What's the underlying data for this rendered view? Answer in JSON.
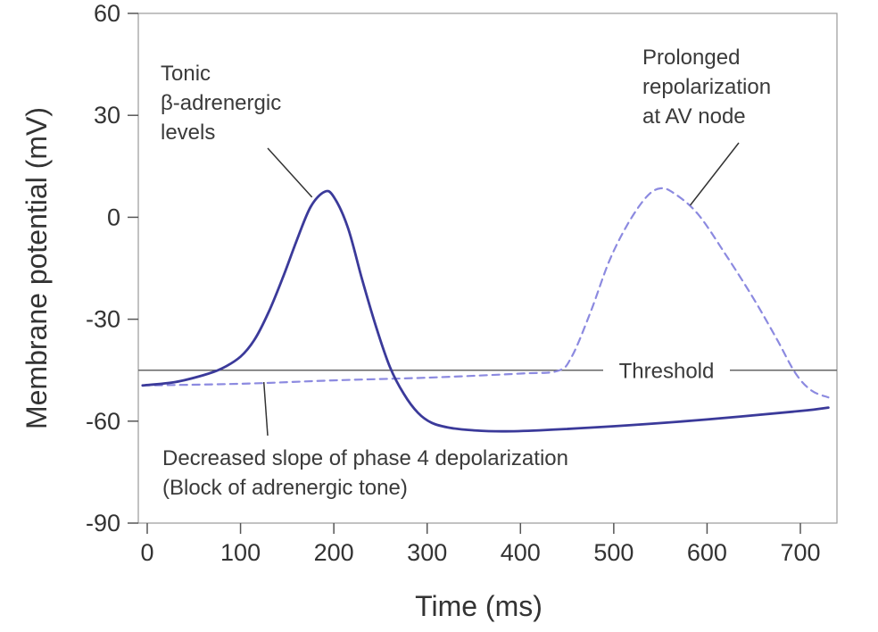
{
  "chart_data": {
    "type": "line",
    "xlabel": "Time (ms)",
    "ylabel": "Membrane potential (mV)",
    "xlim": [
      -10,
      740
    ],
    "ylim": [
      -90,
      60
    ],
    "x_ticks": [
      0,
      100,
      200,
      300,
      400,
      500,
      600,
      700
    ],
    "y_ticks": [
      60,
      30,
      0,
      -30,
      -60,
      -90
    ],
    "grid": false,
    "threshold": {
      "y": -45,
      "label": "Threshold"
    },
    "series": [
      {
        "style": "solid",
        "color": "#3b3a9a",
        "points": [
          [
            -5,
            -49.5
          ],
          [
            30,
            -48.5
          ],
          [
            60,
            -46.5
          ],
          [
            80,
            -44.5
          ],
          [
            100,
            -41
          ],
          [
            115,
            -36
          ],
          [
            130,
            -28
          ],
          [
            145,
            -18
          ],
          [
            160,
            -7
          ],
          [
            175,
            3
          ],
          [
            190,
            7.5
          ],
          [
            200,
            6
          ],
          [
            215,
            -3
          ],
          [
            230,
            -18
          ],
          [
            245,
            -32
          ],
          [
            260,
            -44
          ],
          [
            275,
            -52
          ],
          [
            290,
            -57.5
          ],
          [
            305,
            -60.5
          ],
          [
            325,
            -62
          ],
          [
            350,
            -62.7
          ],
          [
            380,
            -63
          ],
          [
            420,
            -62.7
          ],
          [
            500,
            -61.5
          ],
          [
            600,
            -59.5
          ],
          [
            700,
            -57
          ],
          [
            730,
            -56
          ]
        ]
      },
      {
        "style": "dashed",
        "color": "#8c8ae0",
        "points": [
          [
            -5,
            -49.5
          ],
          [
            100,
            -49
          ],
          [
            200,
            -48
          ],
          [
            300,
            -47.2
          ],
          [
            400,
            -46
          ],
          [
            440,
            -45.2
          ],
          [
            455,
            -41
          ],
          [
            475,
            -28
          ],
          [
            495,
            -13
          ],
          [
            515,
            -2
          ],
          [
            535,
            6
          ],
          [
            550,
            8.5
          ],
          [
            565,
            7
          ],
          [
            590,
            1
          ],
          [
            620,
            -11
          ],
          [
            650,
            -24
          ],
          [
            675,
            -36
          ],
          [
            695,
            -46
          ],
          [
            712,
            -51
          ],
          [
            730,
            -53
          ]
        ]
      }
    ],
    "annotations": [
      {
        "lines": [
          "Tonic",
          "β-adrenergic",
          "levels"
        ],
        "target": [
          190,
          7.5
        ]
      },
      {
        "lines": [
          "Prolonged",
          "repolarization",
          "at AV node"
        ],
        "target": [
          580,
          3
        ]
      },
      {
        "lines": [
          "Decreased slope of phase 4 depolarization",
          "(Block of adrenergic tone)"
        ],
        "target": [
          125,
          -48.5
        ]
      }
    ]
  }
}
